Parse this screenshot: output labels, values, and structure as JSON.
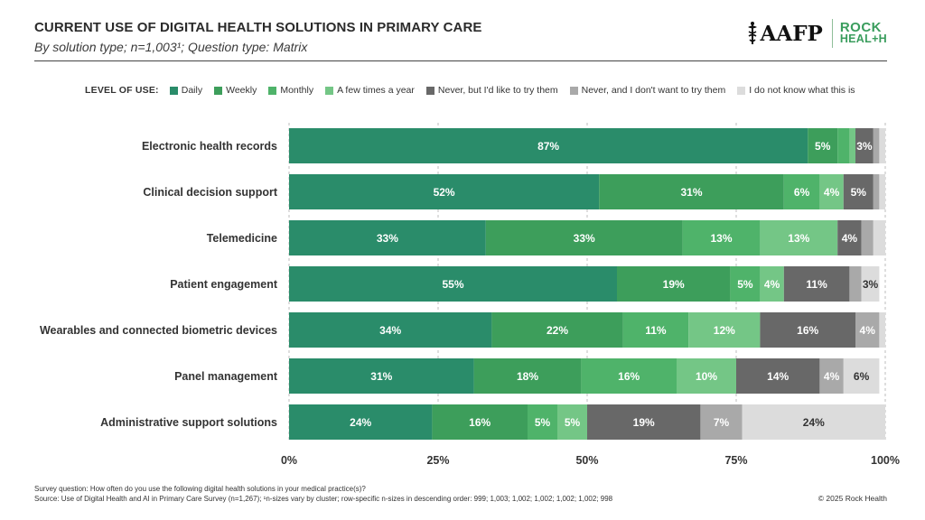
{
  "header": {
    "title": "CURRENT USE OF DIGITAL HEALTH SOLUTIONS IN PRIMARY CARE",
    "subtitle": "By solution type; n=1,003¹; Question type: Matrix"
  },
  "logos": {
    "aafp": "AAFP",
    "rock_line1": "ROCK",
    "rock_line2": "HEAL+H"
  },
  "legend": {
    "title": "LEVEL OF USE:"
  },
  "colors": {
    "daily": "#2a8c6a",
    "weekly": "#3d9e5b",
    "monthly": "#4fb36a",
    "few_times": "#74c686",
    "never_try": "#686868",
    "never_dont": "#a9a9a9",
    "dont_know": "#dcdcdc"
  },
  "chart_data": {
    "type": "bar",
    "orientation": "horizontal",
    "stacked": true,
    "title": "CURRENT USE OF DIGITAL HEALTH SOLUTIONS IN PRIMARY CARE",
    "subtitle": "By solution type; n=1,003¹; Question type: Matrix",
    "xlabel": "",
    "ylabel": "",
    "xlim": [
      0,
      100
    ],
    "x_ticks": [
      0,
      25,
      50,
      75,
      100
    ],
    "x_tick_labels": [
      "0%",
      "25%",
      "50%",
      "75%",
      "100%"
    ],
    "grid": true,
    "legend_position": "top",
    "categories": [
      "Electronic health records",
      "Clinical decision support",
      "Telemedicine",
      "Patient engagement",
      "Wearables and connected biometric devices",
      "Panel management",
      "Administrative support solutions"
    ],
    "series": [
      {
        "name": "Daily",
        "color_key": "daily",
        "text_color": "#ffffff",
        "values": [
          87,
          52,
          33,
          55,
          34,
          31,
          24
        ]
      },
      {
        "name": "Weekly",
        "color_key": "weekly",
        "text_color": "#ffffff",
        "values": [
          5,
          31,
          33,
          19,
          22,
          18,
          16
        ]
      },
      {
        "name": "Monthly",
        "color_key": "monthly",
        "text_color": "#ffffff",
        "values": [
          2,
          6,
          13,
          5,
          11,
          16,
          5
        ]
      },
      {
        "name": "A few times a year",
        "color_key": "few_times",
        "text_color": "#ffffff",
        "values": [
          1,
          4,
          13,
          4,
          12,
          10,
          5
        ]
      },
      {
        "name": "Never, but I'd like to try them",
        "color_key": "never_try",
        "text_color": "#ffffff",
        "values": [
          3,
          5,
          4,
          11,
          16,
          14,
          19
        ]
      },
      {
        "name": "Never, and I don't want to try them",
        "color_key": "never_dont",
        "text_color": "#ffffff",
        "values": [
          1,
          1,
          2,
          2,
          4,
          4,
          7
        ]
      },
      {
        "name": "I do not know what this is",
        "color_key": "dont_know",
        "text_color": "#333333",
        "values": [
          1,
          1,
          2,
          3,
          1,
          6,
          24
        ]
      }
    ],
    "data_labels": [
      [
        "87%",
        "5%",
        "",
        "",
        "3%",
        "",
        ""
      ],
      [
        "52%",
        "31%",
        "6%",
        "4%",
        "5%",
        "",
        ""
      ],
      [
        "33%",
        "33%",
        "13%",
        "13%",
        "4%",
        "",
        ""
      ],
      [
        "55%",
        "19%",
        "5%",
        "4%",
        "11%",
        "",
        "3%"
      ],
      [
        "34%",
        "22%",
        "11%",
        "12%",
        "16%",
        "4%",
        ""
      ],
      [
        "31%",
        "18%",
        "16%",
        "10%",
        "14%",
        "4%",
        "6%"
      ],
      [
        "24%",
        "16%",
        "5%",
        "5%",
        "19%",
        "7%",
        "24%"
      ]
    ]
  },
  "footer": {
    "question": "Survey question: How often do you use the following digital health solutions in your medical practice(s)?",
    "source": "Source: Use of Digital Health and AI in Primary Care Survey (n=1,267); ¹n-sizes vary by cluster; row-specific n-sizes in descending order: 999; 1,003; 1,002; 1,002; 1,002; 1,002; 998",
    "copyright": "© 2025 Rock Health"
  }
}
